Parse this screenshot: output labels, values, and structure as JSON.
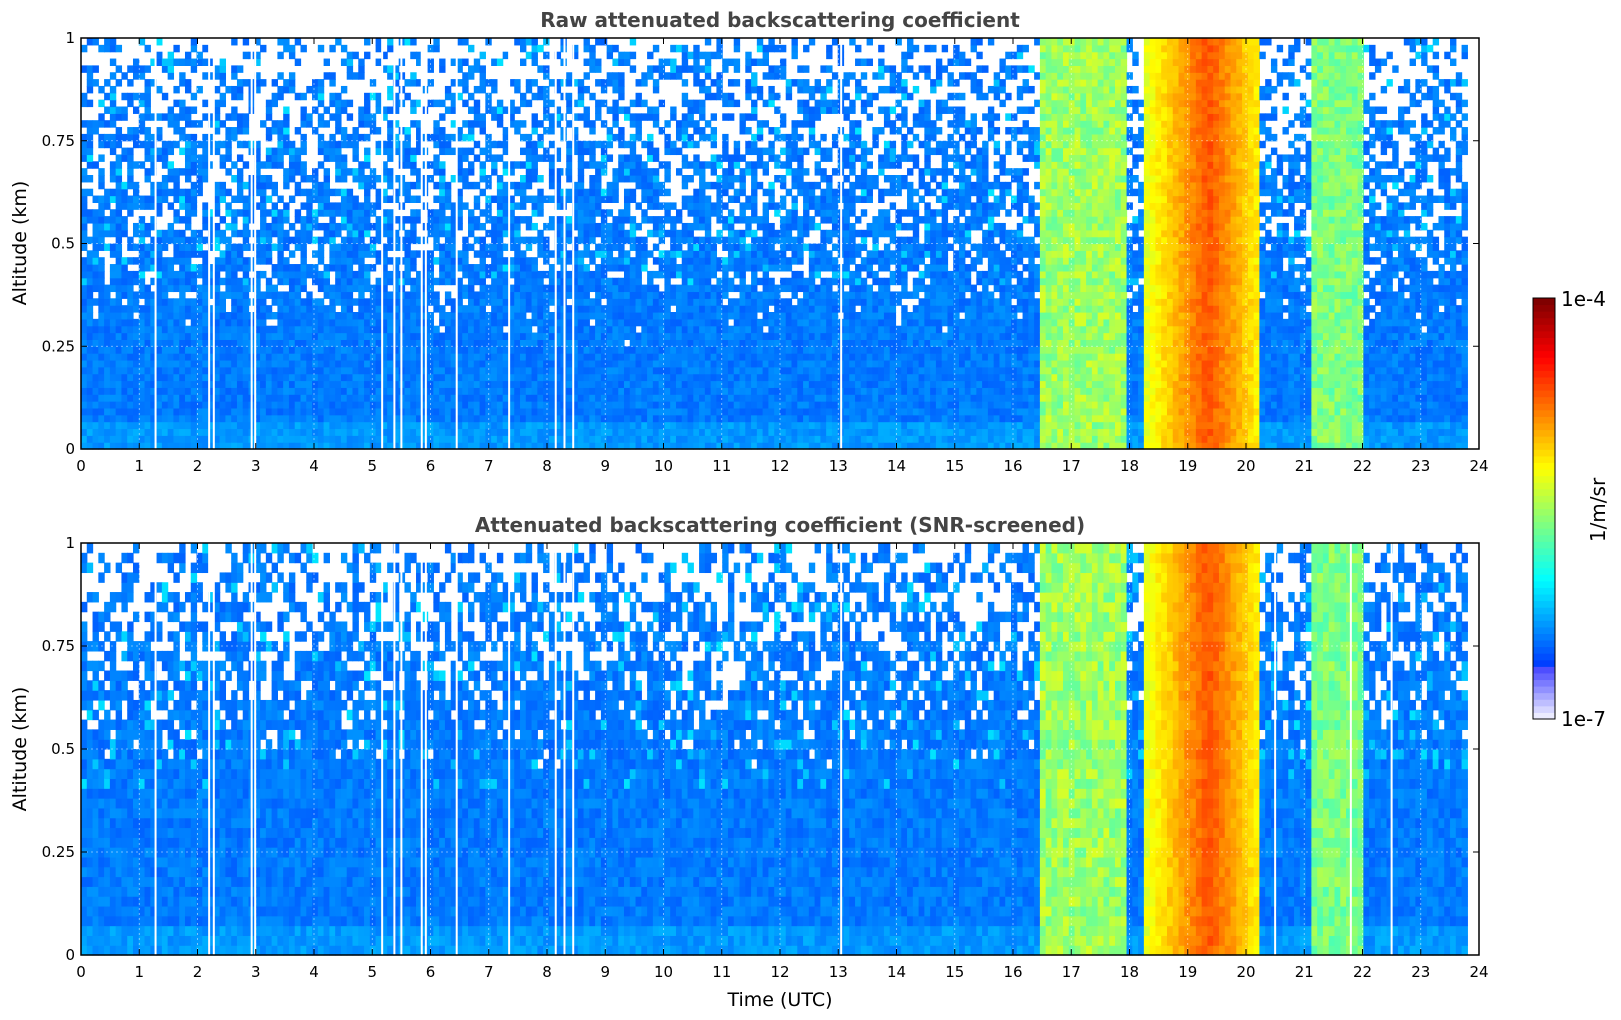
{
  "chart_data": [
    {
      "type": "heatmap",
      "title": "Raw attenuated backscattering coefficient",
      "xlabel": "",
      "ylabel": "Altitude (km)",
      "xlim": [
        0,
        24
      ],
      "ylim": [
        0,
        1
      ],
      "x_ticks": [
        "0",
        "1",
        "2",
        "3",
        "4",
        "5",
        "6",
        "7",
        "8",
        "9",
        "10",
        "11",
        "12",
        "13",
        "14",
        "15",
        "16",
        "17",
        "18",
        "19",
        "20",
        "21",
        "22",
        "23",
        "24"
      ],
      "y_ticks": [
        "0",
        "0.25",
        "0.5",
        "0.75",
        "1"
      ],
      "grid": true,
      "data_end_time": 23.8,
      "masked": "noise_speckle",
      "gaps": [
        1.28,
        2.2,
        2.28,
        2.93,
        2.99,
        5.17,
        5.38,
        5.5,
        5.85,
        5.92,
        6.45,
        7.35,
        8.15,
        8.3,
        8.45,
        13.05
      ],
      "regions": [
        {
          "t_start": 0.0,
          "t_end": 16.5,
          "level": "low (~1e-7 to 1e-6)"
        },
        {
          "t_start": 16.5,
          "t_end": 17.9,
          "level": "moderate (~3e-6 to 1e-5)"
        },
        {
          "t_start": 18.2,
          "t_end": 20.2,
          "level": "high (~1e-5 to 3e-5)"
        },
        {
          "t_start": 21.1,
          "t_end": 22.0,
          "level": "moderate (~3e-6 to 1e-5)"
        }
      ]
    },
    {
      "type": "heatmap",
      "title": "Attenuated backscattering coefficient (SNR-screened)",
      "xlabel": "Time (UTC)",
      "ylabel": "Altitude (km)",
      "xlim": [
        0,
        24
      ],
      "ylim": [
        0,
        1
      ],
      "x_ticks": [
        "0",
        "1",
        "2",
        "3",
        "4",
        "5",
        "6",
        "7",
        "8",
        "9",
        "10",
        "11",
        "12",
        "13",
        "14",
        "15",
        "16",
        "17",
        "18",
        "19",
        "20",
        "21",
        "22",
        "23",
        "24"
      ],
      "y_ticks": [
        "0",
        "0.25",
        "0.5",
        "0.75",
        "1"
      ],
      "grid": true,
      "data_end_time": 23.8,
      "masked": "snr_blobs",
      "gaps": [
        1.28,
        2.2,
        2.28,
        2.93,
        2.99,
        5.17,
        5.38,
        5.5,
        5.85,
        5.92,
        6.45,
        7.35,
        8.15,
        8.3,
        8.45,
        13.05,
        20.5,
        21.8,
        22.5
      ],
      "regions": [
        {
          "t_start": 0.0,
          "t_end": 16.5,
          "level": "low (~1e-7 to 1e-6)"
        },
        {
          "t_start": 16.5,
          "t_end": 17.9,
          "level": "moderate (~3e-6 to 1e-5)"
        },
        {
          "t_start": 18.2,
          "t_end": 20.2,
          "level": "high (~1e-5 to 3e-5)"
        },
        {
          "t_start": 21.1,
          "t_end": 22.0,
          "level": "moderate (~3e-6 to 1e-5)"
        }
      ]
    }
  ],
  "colorbar": {
    "label": "1/m/sr",
    "max_label": "1e-4",
    "min_label": "1e-7",
    "scale": "log",
    "colormap": "jet"
  }
}
